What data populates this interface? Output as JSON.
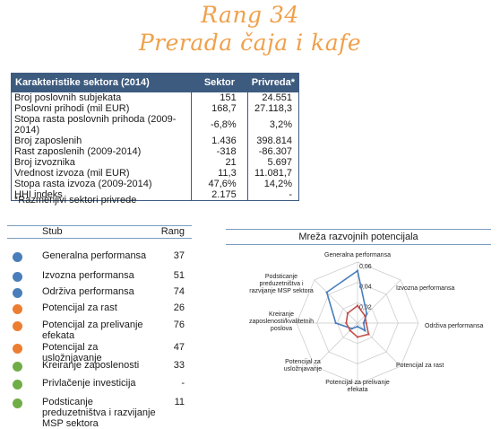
{
  "header": {
    "rank": "Rang 34",
    "sector": "Prerada čaja i kafe"
  },
  "characteristics": {
    "columns": [
      "Karakteristike sektora (2014)",
      "Sektor",
      "Privreda*"
    ],
    "rows": [
      [
        "Broj poslovnih subjekata",
        "151",
        "24.551"
      ],
      [
        "Poslovni prihodi (mil EUR)",
        "168,7",
        "27.118,3"
      ],
      [
        "Stopa rasta poslovnih prihoda (2009-2014)",
        "-6,8%",
        "3,2%"
      ],
      [
        "Broj zaposlenih",
        "1.436",
        "398.814"
      ],
      [
        "Rast zaposlenih (2009-2014)",
        "-318",
        "-86.307"
      ],
      [
        "Broj izvoznika",
        "21",
        "5.697"
      ],
      [
        "Vrednost izvoza (mil EUR)",
        "11,3",
        "11.081,7"
      ],
      [
        "Stopa rasta izvoza (2009-2014)",
        "47,6%",
        "14,2%"
      ],
      [
        "HHI indeks",
        "2.175",
        "-"
      ]
    ],
    "footnote": "*Razmenjivi sektori privrede"
  },
  "pillars": {
    "col_stub": "Stub",
    "col_rank": "Rang",
    "items": [
      {
        "label": "Generalna performansa",
        "rank": "37",
        "color": "#4a7ebb"
      },
      {
        "label": "Izvozna performansa",
        "rank": "51",
        "color": "#4a7ebb"
      },
      {
        "label": "Održiva performansa",
        "rank": "74",
        "color": "#4a7ebb"
      },
      {
        "label": "Potencijal za  rast",
        "rank": "26",
        "color": "#ed7d31"
      },
      {
        "label": "Potencijal za prelivanje efekata",
        "rank": "76",
        "color": "#ed7d31"
      },
      {
        "label": "Potencijal za usložnjavanje",
        "rank": "47",
        "color": "#ed7d31"
      },
      {
        "label": "Kreiranje zaposlenosti",
        "rank": "33",
        "color": "#70ad47"
      },
      {
        "label": "Privlačenje investicija",
        "rank": "-",
        "color": "#70ad47"
      },
      {
        "label": "Podsticanje preduzetništva i razvijanje MSP sektora",
        "rank": "11",
        "color": "#70ad47"
      }
    ]
  },
  "radar": {
    "title": "Mreža razvojnih potencijala",
    "axes": [
      "Generalna performansa",
      "Izvozna performansa",
      "Održiva performansa",
      "Potencijal za rast",
      "Potencijal za prelivanje efekata",
      "Potencijal za usložnjavanje",
      "Kreiranje zaposlenosti/kvalitetnih poslova",
      "Podsticanje preduzetništva i razvijanje MSP sektora"
    ],
    "ticks": [
      "0,06",
      "0,04",
      "0,02"
    ],
    "max": 0.07,
    "series": [
      {
        "color": "#4a7ebb",
        "values": [
          0.06,
          0.015,
          0.007,
          0.012,
          0.004,
          0.009,
          0.025,
          0.05
        ]
      },
      {
        "color": "#c0504d",
        "values": [
          0.02,
          0.012,
          0.01,
          0.018,
          0.016,
          0.012,
          0.013,
          0.016
        ]
      }
    ]
  }
}
